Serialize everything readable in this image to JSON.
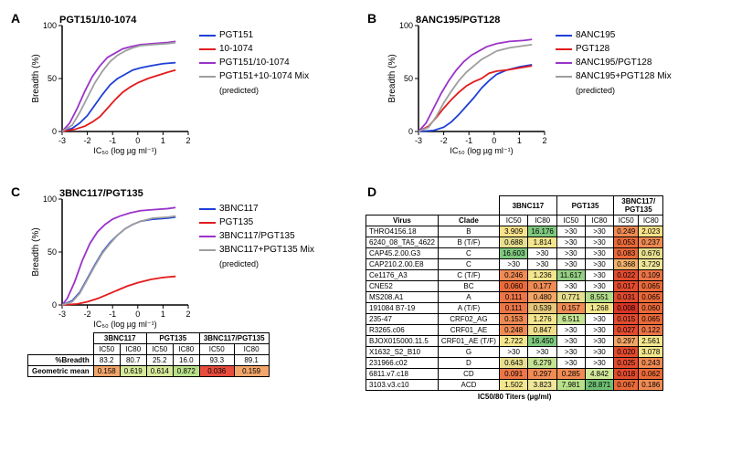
{
  "panelA": {
    "label": "A",
    "title": "PGT151/10-1074",
    "xlabel": "IC₅₀ (log µg ml⁻¹)",
    "ylabel": "Breadth (%)",
    "xlim": [
      -3,
      2
    ],
    "ylim": [
      0,
      100
    ],
    "yticks": [
      0,
      50,
      100
    ],
    "xticks": [
      -3,
      -2,
      -1,
      0,
      1,
      2
    ],
    "series": [
      {
        "name": "PGT151",
        "color": "#1e3fd8",
        "points": [
          [
            -3,
            0
          ],
          [
            -2.6,
            3
          ],
          [
            -2.3,
            8
          ],
          [
            -2.0,
            15
          ],
          [
            -1.7,
            25
          ],
          [
            -1.4,
            35
          ],
          [
            -1.1,
            44
          ],
          [
            -0.8,
            50
          ],
          [
            -0.5,
            54
          ],
          [
            -0.2,
            58
          ],
          [
            0.1,
            60
          ],
          [
            0.5,
            62
          ],
          [
            1.0,
            64
          ],
          [
            1.5,
            65
          ]
        ]
      },
      {
        "name": "10-1074",
        "color": "#e21a1c",
        "points": [
          [
            -3,
            0
          ],
          [
            -2.5,
            2
          ],
          [
            -2.1,
            5
          ],
          [
            -1.8,
            9
          ],
          [
            -1.5,
            14
          ],
          [
            -1.2,
            22
          ],
          [
            -0.9,
            30
          ],
          [
            -0.6,
            37
          ],
          [
            -0.3,
            42
          ],
          [
            0.0,
            46
          ],
          [
            0.4,
            50
          ],
          [
            0.8,
            53
          ],
          [
            1.2,
            56
          ],
          [
            1.5,
            58
          ]
        ]
      },
      {
        "name": "PGT151/10-1074",
        "color": "#9a34c8",
        "points": [
          [
            -3,
            0
          ],
          [
            -2.7,
            8
          ],
          [
            -2.4,
            22
          ],
          [
            -2.1,
            38
          ],
          [
            -1.8,
            52
          ],
          [
            -1.5,
            62
          ],
          [
            -1.2,
            70
          ],
          [
            -0.9,
            74
          ],
          [
            -0.6,
            78
          ],
          [
            -0.3,
            80
          ],
          [
            0.1,
            82
          ],
          [
            0.6,
            83
          ],
          [
            1.2,
            84
          ],
          [
            1.5,
            85
          ]
        ]
      },
      {
        "name": "PGT151+10-1074 Mix",
        "name2": "(predicted)",
        "color": "#9e9e9e",
        "points": [
          [
            -3,
            0
          ],
          [
            -2.6,
            6
          ],
          [
            -2.3,
            18
          ],
          [
            -2.0,
            32
          ],
          [
            -1.7,
            46
          ],
          [
            -1.4,
            57
          ],
          [
            -1.1,
            66
          ],
          [
            -0.8,
            72
          ],
          [
            -0.5,
            76
          ],
          [
            -0.2,
            79
          ],
          [
            0.1,
            81
          ],
          [
            0.6,
            82
          ],
          [
            1.2,
            83
          ],
          [
            1.5,
            84
          ]
        ]
      }
    ]
  },
  "panelB": {
    "label": "B",
    "title": "8ANC195/PGT128",
    "xlabel": "IC₅₀ (log µg ml⁻¹)",
    "ylabel": "Breadth (%)",
    "xlim": [
      -3,
      2
    ],
    "ylim": [
      0,
      100
    ],
    "yticks": [
      0,
      50,
      100
    ],
    "xticks": [
      -3,
      -2,
      -1,
      0,
      1,
      2
    ],
    "series": [
      {
        "name": "8ANC195",
        "color": "#1e3fd8",
        "points": [
          [
            -3,
            0
          ],
          [
            -2.4,
            1
          ],
          [
            -2.0,
            4
          ],
          [
            -1.7,
            9
          ],
          [
            -1.4,
            16
          ],
          [
            -1.1,
            24
          ],
          [
            -0.8,
            32
          ],
          [
            -0.5,
            41
          ],
          [
            -0.2,
            48
          ],
          [
            0.1,
            54
          ],
          [
            0.5,
            58
          ],
          [
            1.0,
            61
          ],
          [
            1.5,
            63
          ]
        ]
      },
      {
        "name": "PGT128",
        "color": "#e21a1c",
        "points": [
          [
            -3,
            0
          ],
          [
            -2.6,
            5
          ],
          [
            -2.3,
            13
          ],
          [
            -2.0,
            22
          ],
          [
            -1.7,
            30
          ],
          [
            -1.4,
            37
          ],
          [
            -1.1,
            43
          ],
          [
            -0.8,
            47
          ],
          [
            -0.5,
            50
          ],
          [
            -0.2,
            55
          ],
          [
            0.1,
            57
          ],
          [
            0.5,
            58
          ],
          [
            1.0,
            60
          ],
          [
            1.5,
            62
          ]
        ]
      },
      {
        "name": "8ANC195/PGT128",
        "color": "#9a34c8",
        "points": [
          [
            -3,
            0
          ],
          [
            -2.7,
            8
          ],
          [
            -2.4,
            22
          ],
          [
            -2.1,
            36
          ],
          [
            -1.8,
            48
          ],
          [
            -1.5,
            58
          ],
          [
            -1.2,
            66
          ],
          [
            -0.9,
            72
          ],
          [
            -0.6,
            76
          ],
          [
            -0.3,
            80
          ],
          [
            0.1,
            83
          ],
          [
            0.6,
            85
          ],
          [
            1.2,
            86
          ],
          [
            1.5,
            87
          ]
        ]
      },
      {
        "name": "8ANC195+PGT128 Mix",
        "name2": "(predicted)",
        "color": "#9e9e9e",
        "points": [
          [
            -3,
            0
          ],
          [
            -2.6,
            4
          ],
          [
            -2.3,
            14
          ],
          [
            -2.0,
            27
          ],
          [
            -1.7,
            38
          ],
          [
            -1.4,
            48
          ],
          [
            -1.1,
            56
          ],
          [
            -0.8,
            62
          ],
          [
            -0.5,
            68
          ],
          [
            -0.2,
            72
          ],
          [
            0.1,
            76
          ],
          [
            0.6,
            79
          ],
          [
            1.2,
            81
          ],
          [
            1.5,
            82
          ]
        ]
      }
    ]
  },
  "panelC": {
    "label": "C",
    "title": "3BNC117/PGT135",
    "xlabel": "IC₅₀ (log µg ml⁻¹)",
    "ylabel": "Breadth (%)",
    "xlim": [
      -3,
      2
    ],
    "ylim": [
      0,
      100
    ],
    "yticks": [
      0,
      50,
      100
    ],
    "xticks": [
      -3,
      -2,
      -1,
      0,
      1,
      2
    ],
    "series": [
      {
        "name": "3BNC117",
        "color": "#1e3fd8",
        "points": [
          [
            -3,
            0
          ],
          [
            -2.6,
            4
          ],
          [
            -2.3,
            12
          ],
          [
            -2.0,
            25
          ],
          [
            -1.7,
            38
          ],
          [
            -1.4,
            50
          ],
          [
            -1.1,
            59
          ],
          [
            -0.8,
            66
          ],
          [
            -0.5,
            72
          ],
          [
            -0.2,
            76
          ],
          [
            0.1,
            79
          ],
          [
            0.6,
            81
          ],
          [
            1.2,
            82
          ],
          [
            1.5,
            83
          ]
        ]
      },
      {
        "name": "PGT135",
        "color": "#e21a1c",
        "points": [
          [
            -3,
            0
          ],
          [
            -2.4,
            1
          ],
          [
            -2.0,
            3
          ],
          [
            -1.6,
            6
          ],
          [
            -1.2,
            10
          ],
          [
            -0.8,
            14
          ],
          [
            -0.4,
            18
          ],
          [
            0.0,
            21
          ],
          [
            0.5,
            24
          ],
          [
            1.0,
            26
          ],
          [
            1.5,
            27
          ]
        ]
      },
      {
        "name": "3BNC117/PGT135",
        "color": "#9a34c8",
        "points": [
          [
            -3,
            0
          ],
          [
            -2.8,
            6
          ],
          [
            -2.5,
            22
          ],
          [
            -2.2,
            42
          ],
          [
            -1.9,
            58
          ],
          [
            -1.6,
            69
          ],
          [
            -1.3,
            76
          ],
          [
            -1.0,
            81
          ],
          [
            -0.7,
            84
          ],
          [
            -0.3,
            87
          ],
          [
            0.1,
            89
          ],
          [
            0.6,
            90
          ],
          [
            1.2,
            91
          ],
          [
            1.5,
            92
          ]
        ]
      },
      {
        "name": "3BNC117+PGT135 Mix",
        "name2": "(predicted)",
        "color": "#9e9e9e",
        "points": [
          [
            -3,
            0
          ],
          [
            -2.6,
            3
          ],
          [
            -2.3,
            11
          ],
          [
            -2.0,
            24
          ],
          [
            -1.7,
            37
          ],
          [
            -1.4,
            49
          ],
          [
            -1.1,
            58
          ],
          [
            -0.8,
            66
          ],
          [
            -0.5,
            72
          ],
          [
            -0.2,
            76
          ],
          [
            0.1,
            79
          ],
          [
            0.6,
            82
          ],
          [
            1.2,
            83
          ],
          [
            1.5,
            84
          ]
        ]
      }
    ],
    "summary": {
      "cols": [
        "3BNC117",
        "PGT135",
        "3BNC117/PGT135"
      ],
      "sub": [
        "IC50",
        "IC80",
        "IC50",
        "IC80",
        "IC50",
        "IC80"
      ],
      "rows": [
        {
          "label": "%Breadth",
          "vals": [
            "83.2",
            "80.7",
            "25.2",
            "16.0",
            "93.3",
            "89.1"
          ],
          "colors": [
            "",
            "",
            "",
            "",
            "",
            ""
          ]
        },
        {
          "label": "Geometric mean",
          "vals": [
            "0.158",
            "0.619",
            "0.614",
            "0.872",
            "0.036",
            "0.159"
          ],
          "colors": [
            "#f2a66b",
            "#d6e89a",
            "#d6e89a",
            "#b8e08a",
            "#e84c3d",
            "#f2a66b"
          ]
        }
      ]
    }
  },
  "panelD": {
    "label": "D",
    "groups": [
      "3BNC117",
      "PGT135",
      "3BNC117/\nPGT135"
    ],
    "sub": [
      "IC50",
      "IC80",
      "IC50",
      "IC80",
      "IC50",
      "IC80"
    ],
    "footer": "IC50/80 Titers (µg/ml)",
    "rows": [
      {
        "virus": "THRO4156.18",
        "clade": "B",
        "v": [
          "3.909",
          "16.176",
          ">30",
          ">30",
          "0.249",
          "2.023"
        ],
        "c": [
          "#f9e28a",
          "#7fc97f",
          "#ffffff",
          "#ffffff",
          "#f08b54",
          "#f9e28a"
        ]
      },
      {
        "virus": "6240_08_TA5_4622",
        "clade": "B (T/F)",
        "v": [
          "0.688",
          "1.814",
          ">30",
          ">30",
          "0.053",
          "0.237"
        ],
        "c": [
          "#e7df8f",
          "#f3e68e",
          "#ffffff",
          "#ffffff",
          "#ea6a3a",
          "#f08b54"
        ]
      },
      {
        "virus": "CAP45.2.00.G3",
        "clade": "C",
        "v": [
          "16.603",
          ">30",
          ">30",
          ">30",
          "0.083",
          "0.676"
        ],
        "c": [
          "#7fc97f",
          "#ffffff",
          "#ffffff",
          "#ffffff",
          "#ea6a3a",
          "#e7df8f"
        ]
      },
      {
        "virus": "CAP210.2.00.E8",
        "clade": "C",
        "v": [
          ">30",
          ">30",
          ">30",
          ">30",
          "0.368",
          "3.729"
        ],
        "c": [
          "#ffffff",
          "#ffffff",
          "#ffffff",
          "#ffffff",
          "#f3b26b",
          "#efe69a"
        ]
      },
      {
        "virus": "Ce1176_A3",
        "clade": "C (T/F)",
        "v": [
          "0.246",
          "1.236",
          "11.617",
          ">30",
          "0.022",
          "0.109"
        ],
        "c": [
          "#f08b54",
          "#f3e68e",
          "#94cf85",
          "#ffffff",
          "#e34b2f",
          "#ec7547"
        ]
      },
      {
        "virus": "CNE52",
        "clade": "BC",
        "v": [
          "0.060",
          "0.177",
          ">30",
          ">30",
          "0.017",
          "0.065"
        ],
        "c": [
          "#ea6a3a",
          "#ef8b54",
          "#ffffff",
          "#ffffff",
          "#e34b2f",
          "#ea6a3a"
        ]
      },
      {
        "virus": "MS208.A1",
        "clade": "A",
        "v": [
          "0.111",
          "0.480",
          "0.771",
          "8.551",
          "0.031",
          "0.065"
        ],
        "c": [
          "#ec7547",
          "#f3a666",
          "#e7df8f",
          "#b2dd8b",
          "#e34b2f",
          "#ea6a3a"
        ]
      },
      {
        "virus": "191084 B7-19",
        "clade": "A (T/F)",
        "v": [
          "0.111",
          "0.539",
          "0.157",
          "1.268",
          "0.008",
          "0.060"
        ],
        "c": [
          "#ec7547",
          "#e5c87c",
          "#ef8b54",
          "#f3e68e",
          "#d93425",
          "#ea6a3a"
        ]
      },
      {
        "virus": "235-47",
        "clade": "CRF02_AG",
        "v": [
          "0.153",
          "1.276",
          "6.511",
          ">30",
          "0.015",
          "0.065"
        ],
        "c": [
          "#ef8b54",
          "#f3e68e",
          "#c5e394",
          "#ffffff",
          "#e34b2f",
          "#ea6a3a"
        ]
      },
      {
        "virus": "R3265.c06",
        "clade": "CRF01_AE",
        "v": [
          "0.248",
          "0.847",
          ">30",
          ">30",
          "0.027",
          "0.122"
        ],
        "c": [
          "#f08b54",
          "#efdf8f",
          "#ffffff",
          "#ffffff",
          "#e34b2f",
          "#ec7547"
        ]
      },
      {
        "virus": "BJOX015000.11.5",
        "clade": "CRF01_AE (T/F)",
        "v": [
          "2.722",
          "16.450",
          ">30",
          ">30",
          "0.297",
          "2.561"
        ],
        "c": [
          "#f3e68e",
          "#7fc97f",
          "#ffffff",
          "#ffffff",
          "#f3a666",
          "#f3e68e"
        ]
      },
      {
        "virus": "X1632_S2_B10",
        "clade": "G",
        "v": [
          ">30",
          ">30",
          ">30",
          ">30",
          "0.020",
          "3.078"
        ],
        "c": [
          "#ffffff",
          "#ffffff",
          "#ffffff",
          "#ffffff",
          "#e34b2f",
          "#f3e68e"
        ]
      },
      {
        "virus": "231966.c02",
        "clade": "D",
        "v": [
          "0.643",
          "6.279",
          ">30",
          ">30",
          "0.025",
          "0.243"
        ],
        "c": [
          "#e7df8f",
          "#c5e394",
          "#ffffff",
          "#ffffff",
          "#e34b2f",
          "#f08b54"
        ]
      },
      {
        "virus": "6811.v7.c18",
        "clade": "CD",
        "v": [
          "0.091",
          "0.297",
          "0.285",
          "4.842",
          "0.018",
          "0.062"
        ],
        "c": [
          "#ec7547",
          "#f08b54",
          "#f08b54",
          "#d3e79a",
          "#e34b2f",
          "#ea6a3a"
        ]
      },
      {
        "virus": "3103.v3.c10",
        "clade": "ACD",
        "v": [
          "1.502",
          "3.823",
          "7.981",
          "28.871",
          "0.067",
          "0.186"
        ],
        "c": [
          "#f3e68e",
          "#efe69a",
          "#b8e08a",
          "#6fbf73",
          "#ea6a3a",
          "#ef8b54"
        ]
      }
    ]
  }
}
